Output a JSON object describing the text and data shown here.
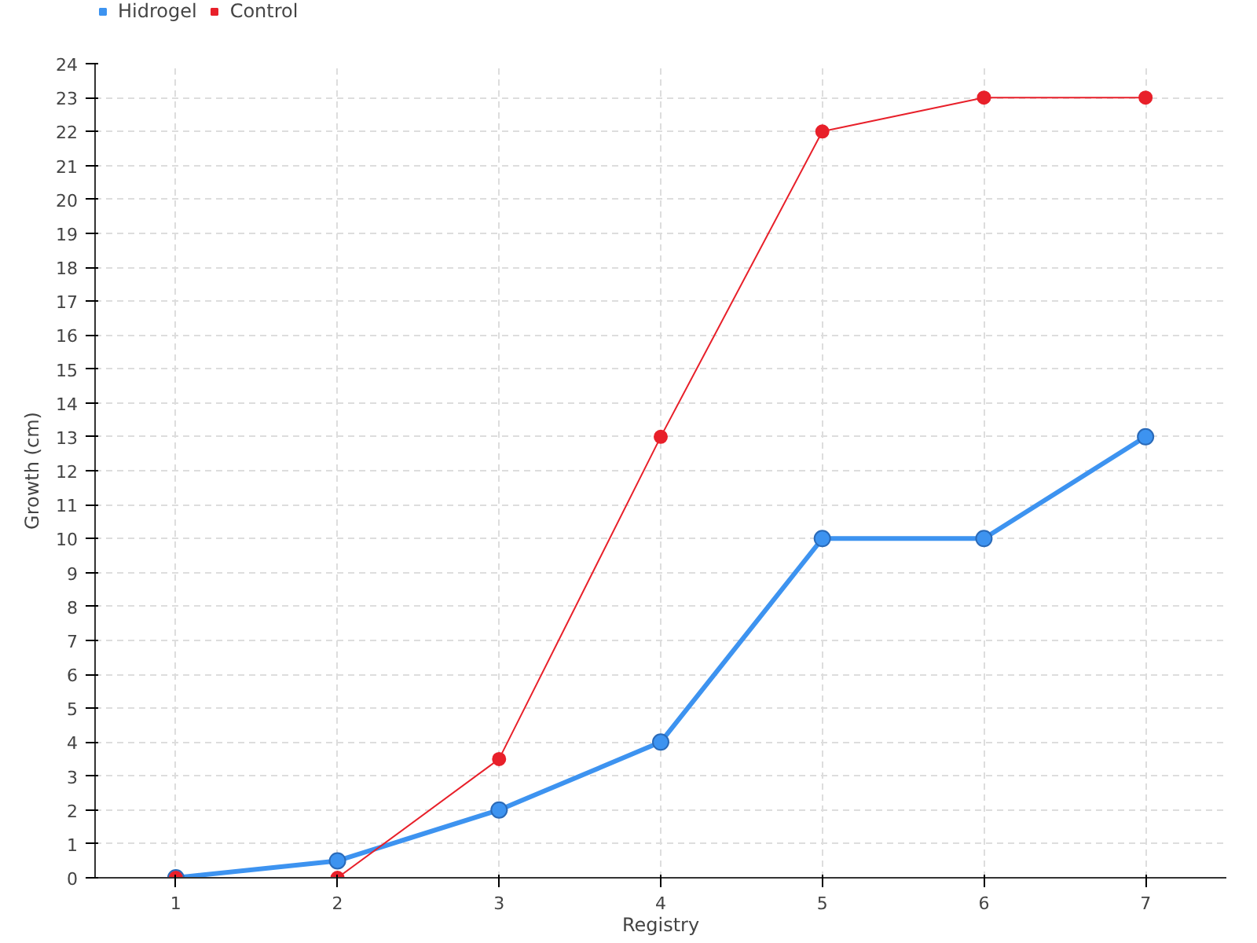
{
  "chart_data": {
    "type": "line",
    "xlabel": "Registry",
    "ylabel": "Growth (cm)",
    "x": [
      1,
      2,
      3,
      4,
      5,
      6,
      7
    ],
    "series": [
      {
        "name": "Hidrogel",
        "color": "#3d93f0",
        "values": [
          0,
          0.5,
          2,
          4,
          10,
          10,
          13
        ]
      },
      {
        "name": "Control",
        "color": "#e8202a",
        "values": [
          0,
          0,
          3.5,
          13,
          22,
          23,
          23
        ]
      }
    ],
    "xlim": [
      0.5,
      7.5
    ],
    "xticks": [
      1,
      2,
      3,
      4,
      5,
      6,
      7
    ],
    "ylim": [
      0,
      24
    ],
    "yticks": [
      0,
      1,
      2,
      3,
      4,
      5,
      6,
      7,
      8,
      9,
      10,
      11,
      12,
      13,
      14,
      15,
      16,
      17,
      18,
      19,
      20,
      21,
      22,
      23,
      24
    ],
    "grid": true,
    "legend": "top left",
    "marker": "circle",
    "line_style": "solid"
  }
}
